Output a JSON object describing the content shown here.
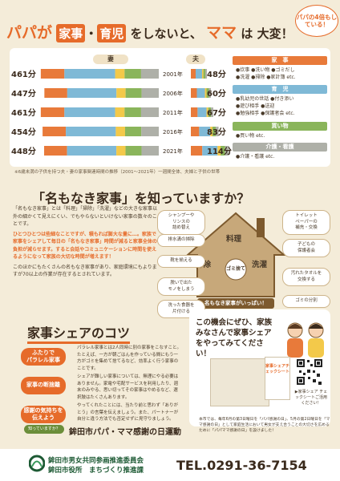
{
  "header": {
    "bubble": "パパの4倍もしている！",
    "title_a": "パパが",
    "title_hl1": "家事",
    "title_dot": "・",
    "title_hl2": "育児",
    "title_b": "をしないと、",
    "title_c": "ママ",
    "title_d": "は",
    "title_e": "大変！"
  },
  "chart_legend": {
    "wife": "妻",
    "husband": "夫"
  },
  "chart_data": {
    "type": "bar",
    "title": "",
    "categories": [
      "2001年",
      "2006年",
      "2011年",
      "2016年",
      "2021年"
    ],
    "series": [
      {
        "name": "妻",
        "values": [
          461,
          447,
          461,
          454,
          448
        ],
        "labels": [
          "461分",
          "447分",
          "461分",
          "454分",
          "448分"
        ]
      },
      {
        "name": "夫",
        "values": [
          48,
          60,
          67,
          83,
          114
        ],
        "labels": [
          "48分",
          "60分",
          "67分",
          "83分",
          "114分"
        ]
      }
    ],
    "segment_colors": [
      "#e87a3a",
      "#7fb9d6",
      "#f3c94a",
      "#8ab55b",
      "#aeb0a8"
    ],
    "unit": "分"
  },
  "chart_note": "※6歳未満の子供を持つ夫・妻の家事関連時間の推移（2001〜2021年）一週間全体、夫婦と子供の世帯",
  "categories_legend": [
    {
      "name": "家　事",
      "color": "#e87a3a",
      "items": "●炊事 ●洗い物 ●ゴミだし\n●洗濯 ●掃除 ●家計簿 etc."
    },
    {
      "name": "育　児",
      "color": "#7fb9d6",
      "items": "●乳幼児の世話 ●付き添い\n●遊び相手 ●送迎\n●勉強相手 ●保護者会 etc."
    },
    {
      "name": "買い物",
      "color": "#8ab55b",
      "items": "●買い物 etc."
    },
    {
      "name": "介護・看護",
      "color": "#aeb0a8",
      "items": "●介護・看護 etc."
    }
  ],
  "section2": {
    "title": "「名もなき家事」を知っていますか？",
    "text1": "「名もなき家事」とは「料理」「掃除」「洗濯」などの大きな家事以外の細かくて見えにくい、でもやらないといけない家事の数々のことです。",
    "text2_a": "ひとつひとつは些細なことですが、積もれば膨大な量に…。家族で家事をシェアして毎日の「名もなき家事」時間が減ると家事全体の負担が減らせます。すると会話やコミュニケーションに時間を使えるようになって家族の大切な時間が増えます！",
    "text3": "このほかにもたくさんの名もなき家事があり、家庭環境にもよりますが70以上の作業が存在するとされています。",
    "banner": "名もなき家事がいっぱい！",
    "house_labels": [
      "料理",
      "掃除",
      "ゴミ捨て",
      "洗濯"
    ],
    "chores": [
      "シャンプーや\nリンスの\n詰め替え",
      "トイレット\nペーパーの\n補充・交換",
      "排水溝の掃除",
      "子どもの\n保護者会",
      "靴を揃える",
      "汚れたタオルを\n交換する",
      "脱いで出た\nモノをしまう",
      "ゴミの分別",
      "洗った食器を\n片付ける"
    ]
  },
  "section3": {
    "title": "家事シェアのコツ",
    "tips": [
      {
        "head": "ふたりで\nパラレル家事",
        "text": "パラレル家事とは2人同時に別の家事をこなすこと。たとえば、一方が朝ごはんを作っている間にもう一方がゴミを集めて捨てるなど、効率よく行う家事のことです。"
      },
      {
        "head": "家事の断捨離",
        "text": "シェアが難しい家事については、無理にやる必要はありません。家電や宅配サービスを利用したり、週末のみやる、思い切ってその家事はやめるなど、選択肢はたくさんあります。"
      },
      {
        "head": "感謝の気持ちを\n伝えよう",
        "text": "やってくれたことには、当たり前と思わず「ありがとう」の言葉を伝えましょう。また、パートナーが自分と違う方法でも否定せずに見守りましょう。"
      }
    ],
    "card_text": "この機会にぜひ、家族みなさんで家事シェアをやってみてください！",
    "booklet_title": "家事シェアチェックシート",
    "qr_caption": "▶家事シェア チェックシートご活用ください！"
  },
  "bottom": {
    "know_tag": "知っていますか？",
    "day_title": "鉾田市パパ・ママ感謝の日運動",
    "note": "本市では、毎年6月の第3日曜日を「パパ感謝の日」、5月の第2日曜日を「ママ感謝の日」として家庭生活において男女が支え合うことの大切さを広めるために「パパママ感謝の日」を設けました！"
  },
  "footer": {
    "org1": "鉾田市男女共同参画推進委員会",
    "org2": "鉾田市役所　まちづくり推進課",
    "tel": "TEL.0291-36-7154"
  }
}
